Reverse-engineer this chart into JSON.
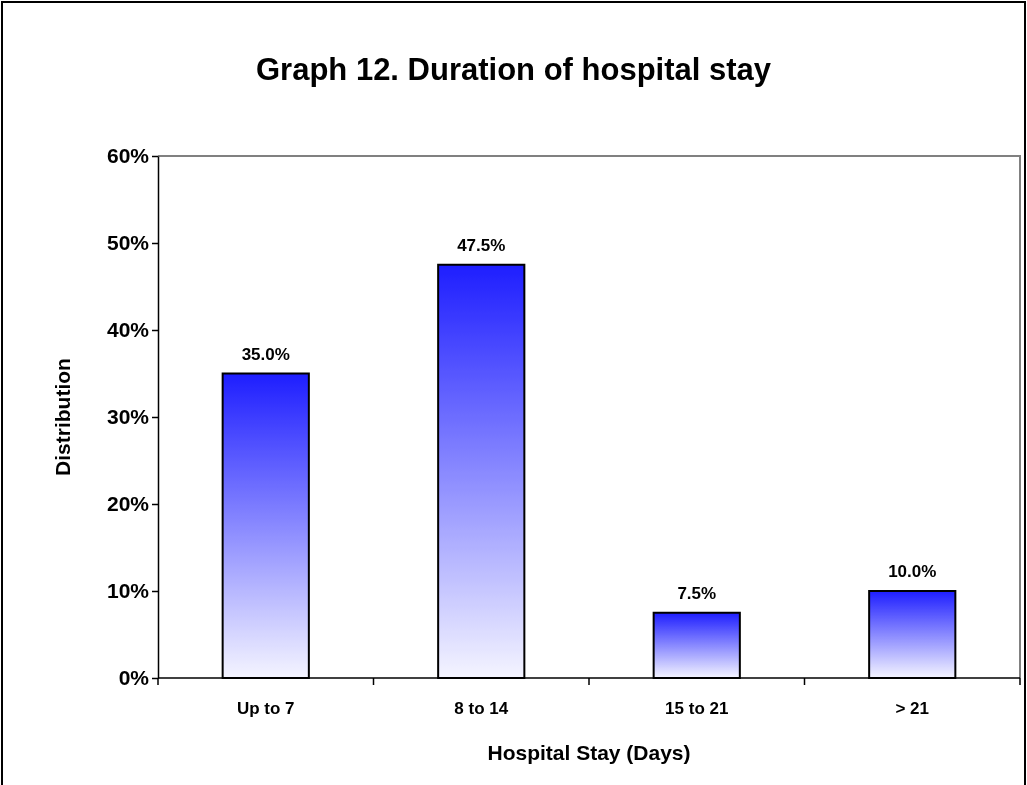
{
  "chart_data": {
    "type": "bar",
    "title": "Graph 12. Duration of hospital stay",
    "xlabel": "Hospital Stay (Days)",
    "ylabel": "Distribution",
    "categories": [
      "Up to 7",
      "8 to 14",
      "15 to 21",
      "> 21"
    ],
    "values": [
      35,
      47.5,
      7.5,
      10
    ],
    "value_labels": [
      "35.0%",
      "47.5%",
      "7.5%",
      "10.0%"
    ],
    "color": "#1e1eff",
    "ylim": [
      0,
      60
    ],
    "yticks": [
      {
        "value": 0,
        "label": "0%"
      },
      {
        "value": 10,
        "label": "10%"
      },
      {
        "value": 20,
        "label": "20%"
      },
      {
        "value": 30,
        "label": "30%"
      },
      {
        "value": 40,
        "label": "40%"
      },
      {
        "value": 50,
        "label": "50%"
      },
      {
        "value": 60,
        "label": "60%"
      }
    ],
    "grid": false
  }
}
